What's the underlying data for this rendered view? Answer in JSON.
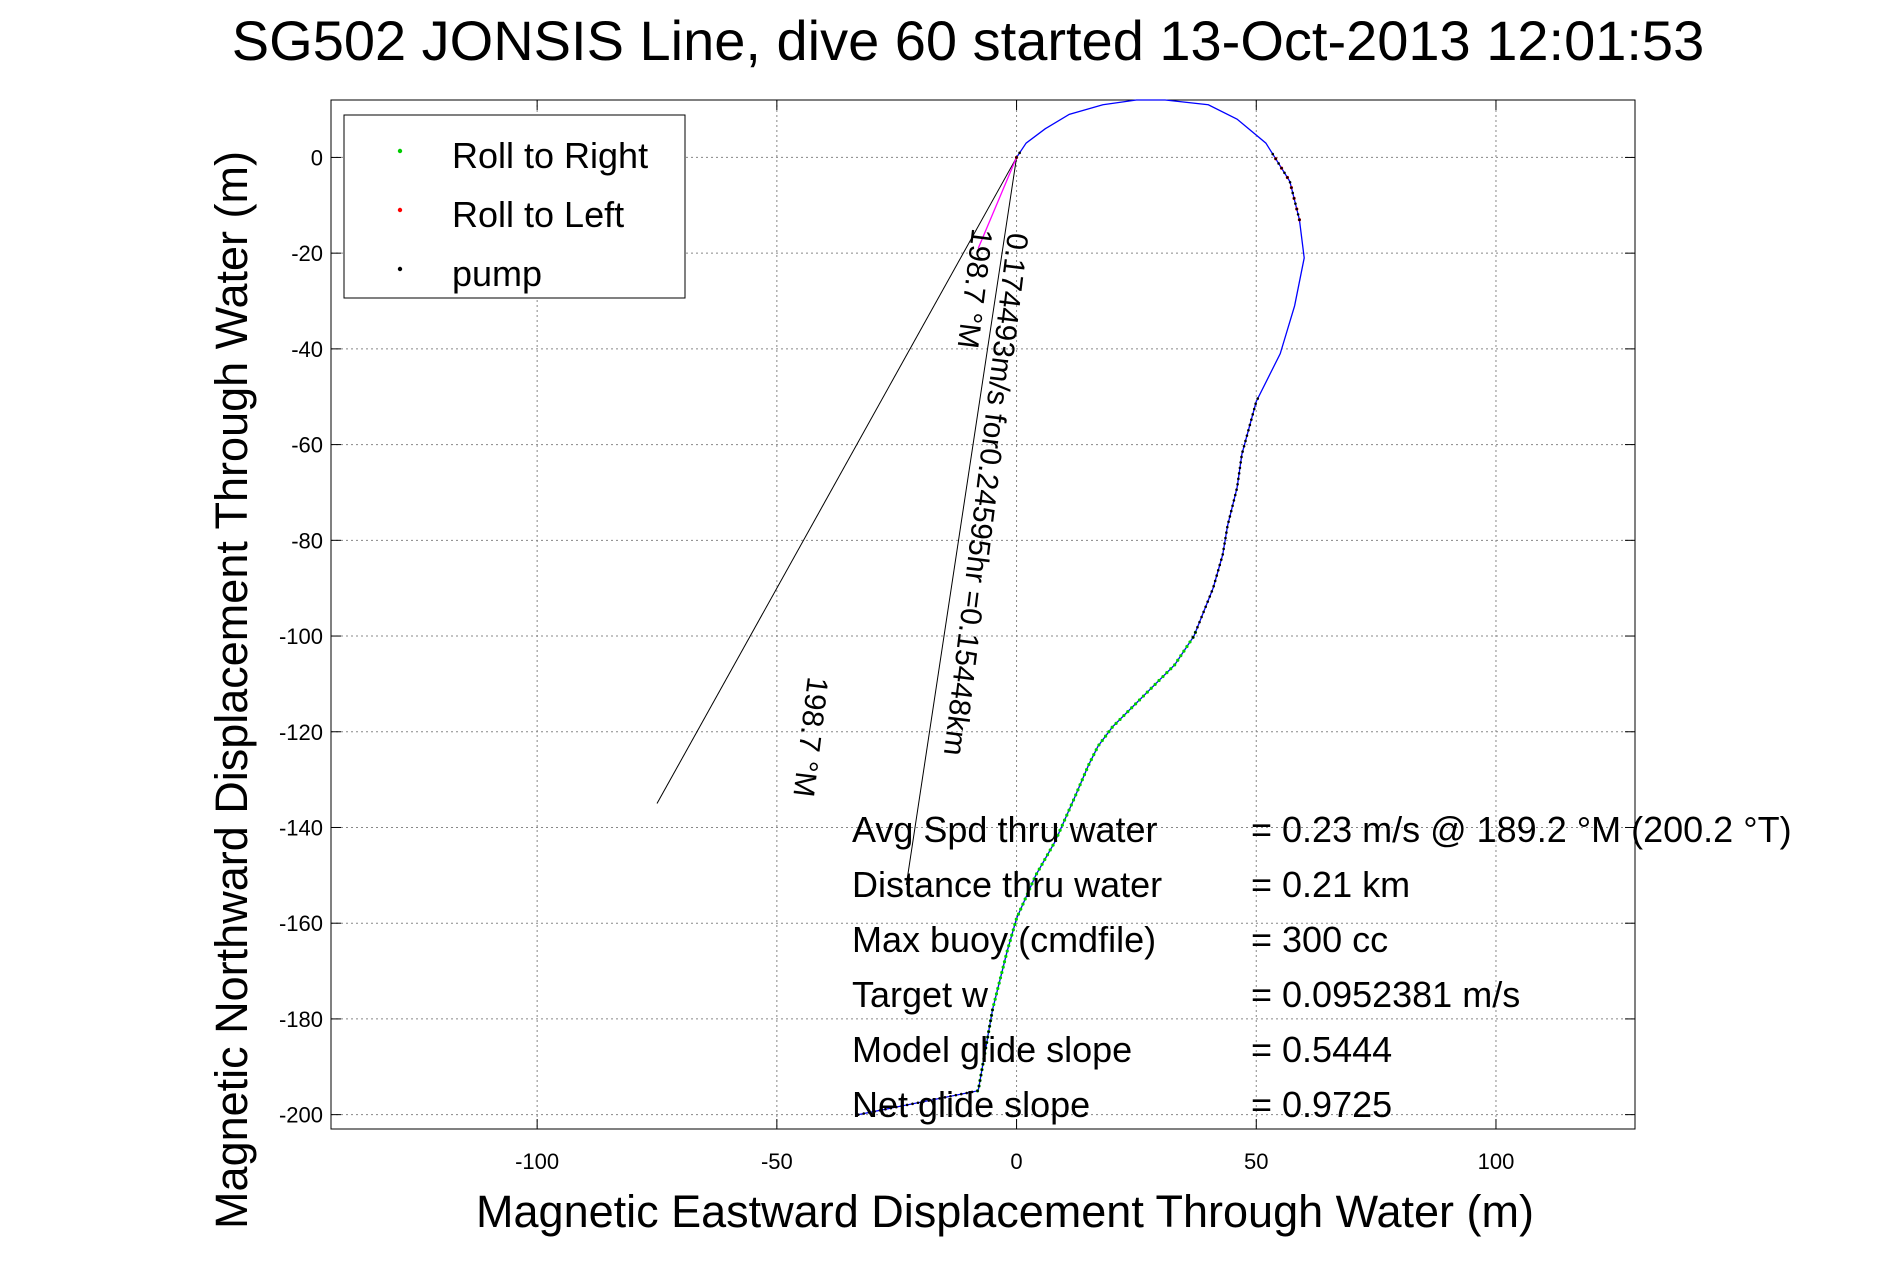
{
  "chart_data": {
    "type": "line",
    "title": "SG502 JONSIS Line, dive 60 started 13-Oct-2013 12:01:53",
    "xlabel": "Magnetic Eastward Displacement Through Water (m)",
    "ylabel": "Magnetic Northward Displacement Through Water (m)",
    "xlim": [
      -143,
      129
    ],
    "ylim": [
      -203,
      12
    ],
    "x_ticks": [
      -100,
      -50,
      0,
      50,
      100
    ],
    "y_ticks": [
      0,
      -20,
      -40,
      -60,
      -80,
      -100,
      -120,
      -140,
      -160,
      -180,
      -200
    ],
    "grid": true,
    "legend_position": "top-left",
    "legend": [
      {
        "label": "Roll to Right",
        "color": "#00cc00"
      },
      {
        "label": "Roll to Left",
        "color": "#ff0000"
      },
      {
        "label": "pump",
        "color": "#000000"
      }
    ],
    "series": [
      {
        "name": "track",
        "color": "#0000ff",
        "points": [
          [
            -33,
            -200
          ],
          [
            -8,
            -195
          ],
          [
            -5,
            -178
          ],
          [
            -2,
            -166
          ],
          [
            0,
            -159
          ],
          [
            4,
            -150
          ],
          [
            8,
            -143
          ],
          [
            12,
            -134
          ],
          [
            15,
            -127
          ],
          [
            17,
            -123
          ],
          [
            20,
            -119
          ],
          [
            27,
            -112
          ],
          [
            33,
            -106
          ],
          [
            37,
            -100
          ],
          [
            41,
            -90
          ],
          [
            43,
            -83
          ],
          [
            44,
            -77
          ],
          [
            46,
            -69
          ],
          [
            47,
            -62
          ],
          [
            50,
            -51
          ],
          [
            55,
            -41
          ],
          [
            58,
            -31
          ],
          [
            60,
            -21
          ],
          [
            59,
            -13
          ],
          [
            57,
            -5
          ],
          [
            52,
            3
          ],
          [
            46,
            8
          ],
          [
            40,
            11
          ],
          [
            31,
            12
          ],
          [
            25,
            12
          ],
          [
            18,
            11
          ],
          [
            11,
            9
          ],
          [
            6,
            6
          ],
          [
            2,
            3
          ],
          [
            0,
            0
          ]
        ]
      },
      {
        "name": "heading",
        "color": "#ff00ff",
        "points": [
          [
            0,
            0
          ],
          [
            -8,
            -19
          ]
        ]
      }
    ],
    "markers": {
      "pump": {
        "color": "#000000",
        "ranges": [
          [
            -33,
            -200,
            -5,
            -178
          ],
          [
            37,
            -100,
            50,
            -51
          ],
          [
            0,
            0,
            60,
            -13
          ]
        ]
      },
      "roll_right": {
        "color": "#00cc00",
        "ranges": [
          [
            -8,
            -195,
            37,
            -100
          ]
        ]
      },
      "roll_left": {
        "color": "#ff0000",
        "ranges": [
          [
            0,
            0,
            60,
            -13
          ]
        ]
      }
    },
    "annotation_lines": [
      {
        "from": [
          0,
          0
        ],
        "to": [
          -75,
          -135
        ]
      },
      {
        "from": [
          0,
          0
        ],
        "to": [
          -23,
          -152
        ]
      }
    ],
    "rotated_labels": [
      {
        "line1": "0.174493m/s for0.24595hr =0.15448km",
        "line2": "198.7 °M"
      },
      {
        "line1": "198.7 °M",
        "line2": ""
      }
    ],
    "stats": [
      {
        "label": "Avg Spd thru water",
        "value": "=  0.23 m/s @ 189.2 °M (200.2 °T)"
      },
      {
        "label": "Distance thru water",
        "value": "=  0.21 km"
      },
      {
        "label": "Max buoy (cmdfile)",
        "value": "= 300 cc"
      },
      {
        "label": "Target w",
        "value": "= 0.0952381 m/s"
      },
      {
        "label": "Model glide slope",
        "value": "= 0.5444"
      },
      {
        "label": "Net glide slope",
        "value": "= 0.9725"
      }
    ]
  }
}
